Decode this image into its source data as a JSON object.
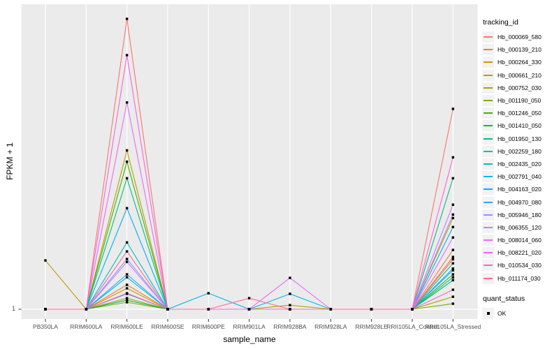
{
  "chart_data": {
    "type": "line",
    "title": "",
    "xlabel": "sample_name",
    "ylabel": "FPKM + 1",
    "x_categories": [
      "PB350LA",
      "RRIM600LA",
      "RRIM600LE",
      "RRIM600SE",
      "RRIM600PE",
      "RRIM901LA",
      "RRIM928BA",
      "RRIM928LA",
      "RRIM928LE",
      "RRII105LA_Control",
      "RRII105LA_Stressed"
    ],
    "y_axis": {
      "tick_labels": [
        "1"
      ],
      "note": "only the value 1 is labeled; series heights below are relative panel heights (0 = 1 FPKM baseline, 1 = top peak)"
    },
    "panel": {
      "background": "#EBEBEB",
      "gridline_color": "#FFFFFF"
    },
    "marker": {
      "shape": "square",
      "color": "#000000"
    },
    "legend_title": "tracking_id",
    "point_legend": {
      "title": "quant_status",
      "label": "OK"
    },
    "legend_position": "right",
    "series": [
      {
        "name": "Hb_000069_580",
        "color": "#F8766D",
        "values": [
          0,
          0,
          1,
          0,
          0,
          0,
          0,
          0,
          0,
          0,
          0.69
        ]
      },
      {
        "name": "Hb_000139_210",
        "color": "#EA8331",
        "values": [
          0,
          0,
          0.084,
          0,
          0,
          0,
          0,
          0,
          0,
          0,
          0.204
        ]
      },
      {
        "name": "Hb_000264_330",
        "color": "#D89000",
        "values": [
          0,
          0,
          0.072,
          0,
          0,
          0,
          0,
          0,
          0,
          0,
          0.172
        ]
      },
      {
        "name": "Hb_000661_210",
        "color": "#C09B00",
        "values": [
          0.168,
          0,
          0.547,
          0,
          0,
          0,
          0,
          0,
          0,
          0,
          0.314
        ]
      },
      {
        "name": "Hb_000752_030",
        "color": "#A3A500",
        "values": [
          0,
          0,
          0.038,
          0,
          0,
          0,
          0.014,
          0,
          0,
          0,
          0.043
        ]
      },
      {
        "name": "Hb_001190_050",
        "color": "#7CAE00",
        "values": [
          0,
          0,
          0.024,
          0,
          0,
          0,
          0,
          0,
          0,
          0,
          0.019
        ]
      },
      {
        "name": "Hb_001246_050",
        "color": "#39B600",
        "values": [
          0,
          0,
          0.508,
          0,
          0,
          0,
          0,
          0,
          0,
          0,
          0.12
        ]
      },
      {
        "name": "Hb_001410_050",
        "color": "#00BB4E",
        "values": [
          0,
          0,
          0.031,
          0,
          0,
          0,
          0,
          0,
          0,
          0,
          0.1
        ]
      },
      {
        "name": "Hb_001950_130",
        "color": "#00BF7D",
        "values": [
          0,
          0,
          0.451,
          0,
          0,
          0,
          0,
          0,
          0,
          0,
          0.451
        ]
      },
      {
        "name": "Hb_002259_180",
        "color": "#00C1A3",
        "values": [
          0,
          0,
          0.053,
          0,
          0,
          0,
          0,
          0,
          0,
          0,
          0.11
        ]
      },
      {
        "name": "Hb_002435_020",
        "color": "#00BFC4",
        "values": [
          0,
          0,
          0.23,
          0,
          0,
          0,
          0,
          0,
          0,
          0,
          0.158
        ]
      },
      {
        "name": "Hb_002791_040",
        "color": "#00BAE0",
        "values": [
          0,
          0,
          0.11,
          0,
          0.055,
          0,
          0.053,
          0,
          0,
          0,
          0.14
        ]
      },
      {
        "name": "Hb_004163_020",
        "color": "#00B0F6",
        "values": [
          0,
          0,
          0.348,
          0,
          0,
          0,
          0,
          0,
          0,
          0,
          0.283
        ]
      },
      {
        "name": "Hb_004970_080",
        "color": "#35A2FF",
        "values": [
          0,
          0,
          0.12,
          0,
          0,
          0,
          0,
          0,
          0,
          0,
          0.134
        ]
      },
      {
        "name": "Hb_005946_180",
        "color": "#9590FF",
        "values": [
          0,
          0,
          0.173,
          0,
          0,
          0,
          0,
          0,
          0,
          0,
          0.326
        ]
      },
      {
        "name": "Hb_006355_120",
        "color": "#C77CFF",
        "values": [
          0,
          0,
          0.163,
          0,
          0,
          0,
          0,
          0,
          0,
          0,
          0.36
        ]
      },
      {
        "name": "Hb_008014_060",
        "color": "#E76BF3",
        "values": [
          0,
          0,
          0.712,
          0,
          0,
          0,
          0.108,
          0,
          0,
          0,
          0.247
        ]
      },
      {
        "name": "Hb_008221_020",
        "color": "#FA62DB",
        "values": [
          0,
          0,
          0.875,
          0,
          0,
          0,
          0,
          0,
          0,
          0,
          0.523
        ]
      },
      {
        "name": "Hb_010534_030",
        "color": "#FF61CC",
        "values": [
          0,
          0,
          0.055,
          0,
          0,
          0,
          0,
          0,
          0,
          0,
          0.067
        ]
      },
      {
        "name": "Hb_011174_030",
        "color": "#FF6A98",
        "values": [
          0,
          0,
          0.199,
          0,
          0,
          0.038,
          0,
          0,
          0,
          0,
          0.18
        ]
      }
    ]
  }
}
